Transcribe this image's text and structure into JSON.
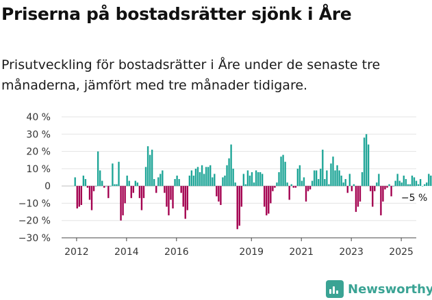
{
  "title": "Priserna på bostadsrätter sjönk i Åre",
  "subtitle": "Prisutveckling för bostadsrätter i Åre under de senaste tre månaderna, jämfört med tre månader tidigare.",
  "brand": {
    "name": "Newsworthy",
    "icon": "newsworthy-bar-chart-icon",
    "color": "#3aa394"
  },
  "chart_data": {
    "type": "bar",
    "yunit": "%",
    "ylim": [
      -30,
      40
    ],
    "yticks": [
      40,
      30,
      20,
      10,
      0,
      -10,
      -20,
      -30
    ],
    "ytick_labels": [
      "40 %",
      "30 %",
      "20 %",
      "10 %",
      "0",
      "−10 %",
      "−20 %",
      "−30 %"
    ],
    "xlim": [
      2011.4,
      2025.6
    ],
    "xticks": [
      2012,
      2014,
      2016,
      2019,
      2021,
      2023,
      2025
    ],
    "xtick_labels": [
      "2012",
      "2014",
      "2016",
      "2019",
      "2021",
      "2023",
      "2025"
    ],
    "grid": "horizontal",
    "colors": {
      "positive": "#1ea597",
      "negative": "#a3004f"
    },
    "annotation": {
      "text": "−5 %",
      "x": 2025.3,
      "y": -5
    },
    "x_start": 2011.94,
    "x_step": 0.0833,
    "values": [
      5,
      -13,
      -12,
      -11,
      6,
      4,
      -1,
      -8,
      -14,
      -3,
      0,
      20,
      9,
      3,
      -1,
      0,
      -7,
      0,
      13,
      1,
      1,
      14,
      -20,
      -17,
      -10,
      6,
      3,
      -7,
      -4,
      3,
      2,
      -7,
      -14,
      -7,
      11,
      23,
      18,
      21,
      4,
      -4,
      5,
      7,
      9,
      -4,
      -12,
      -17,
      -8,
      -13,
      4,
      6,
      4,
      -4,
      -12,
      -19,
      -14,
      6,
      9,
      6,
      10,
      11,
      8,
      12,
      7,
      11,
      11,
      12,
      5,
      7,
      -6,
      -9,
      -11,
      5,
      6,
      12,
      16,
      24,
      10,
      2,
      -25,
      -23,
      -12,
      7,
      1,
      9,
      6,
      8,
      2,
      9,
      8,
      8,
      7,
      -12,
      -17,
      -16,
      -10,
      -3,
      -1,
      2,
      8,
      17,
      18,
      14,
      2,
      -8,
      1,
      -1,
      -1,
      10,
      12,
      3,
      5,
      -9,
      -3,
      -2,
      3,
      9,
      9,
      4,
      10,
      21,
      4,
      9,
      1,
      13,
      17,
      9,
      12,
      9,
      6,
      2,
      4,
      -4,
      7,
      -3,
      1,
      -15,
      -12,
      -9,
      8,
      28,
      30,
      24,
      -3,
      -12,
      -3,
      2,
      7,
      -17,
      -9,
      -2,
      -1,
      1,
      -6,
      0,
      3,
      7,
      3,
      2,
      6,
      4,
      1,
      1,
      6,
      5,
      3,
      1,
      4,
      0,
      1,
      2,
      7,
      6,
      1,
      1,
      -5
    ]
  }
}
